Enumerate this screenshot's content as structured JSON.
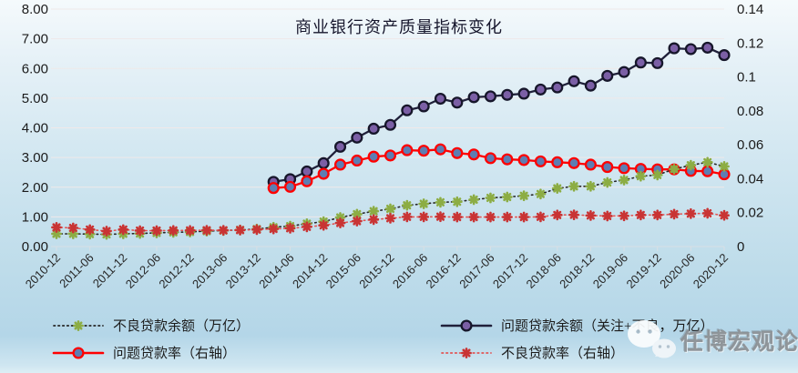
{
  "title": "商业银行资产质量指标变化",
  "watermark": {
    "text": "任博宏观论道",
    "icon": "wechat-icon"
  },
  "legend": [
    {
      "label": "不良贷款余额（万亿）"
    },
    {
      "label": "问题贷款余额（关注+不良，万亿）"
    },
    {
      "label": "问题贷款率（右轴）"
    },
    {
      "label": "不良贷款率（右轴）"
    }
  ],
  "colors": {
    "background_top": "#f5fafc",
    "background_bottom": "#b4d6e8",
    "gridline": "#efe9e9",
    "axis_line": "#d8dfe4",
    "axis_text": "#1b1b1b",
    "title_text": "#16162c",
    "npl_balance_marker": "#8CAD44",
    "npl_balance_line": "#262626",
    "problem_balance_line": "#20203A",
    "problem_balance_marker": "#7B5FA5",
    "problem_ratio_line": "#FF0000",
    "problem_ratio_marker_fill": "#5E7DB2",
    "npl_ratio_line": "#E25454",
    "npl_ratio_marker": "#C93434",
    "watermark_text": "#8a8f94"
  },
  "chart_data": {
    "type": "line",
    "title": "商业银行资产质量指标变化",
    "grid": "horizontal",
    "legend_position": "bottom",
    "categories": [
      "2010-12",
      "2011-03",
      "2011-06",
      "2011-09",
      "2011-12",
      "2012-03",
      "2012-06",
      "2012-09",
      "2012-12",
      "2013-03",
      "2013-06",
      "2013-09",
      "2013-12",
      "2014-03",
      "2014-06",
      "2014-09",
      "2014-12",
      "2015-03",
      "2015-06",
      "2015-09",
      "2015-12",
      "2016-03",
      "2016-06",
      "2016-09",
      "2016-12",
      "2017-03",
      "2017-06",
      "2017-09",
      "2017-12",
      "2018-03",
      "2018-06",
      "2018-09",
      "2018-12",
      "2019-03",
      "2019-06",
      "2019-09",
      "2019-12",
      "2020-03",
      "2020-06",
      "2020-09",
      "2020-12"
    ],
    "x_tick_labels": [
      "2010-12",
      "2011-06",
      "2011-12",
      "2012-06",
      "2012-12",
      "2013-06",
      "2013-12",
      "2014-06",
      "2014-12",
      "2015-06",
      "2015-12",
      "2016-06",
      "2016-12",
      "2017-06",
      "2017-12",
      "2018-06",
      "2018-12",
      "2019-06",
      "2019-12",
      "2020-06",
      "2020-12"
    ],
    "x_label_every": 2,
    "left_axis": {
      "min": 0,
      "max": 8,
      "step": 1,
      "tick_labels": [
        "0.00",
        "1.00",
        "2.00",
        "3.00",
        "4.00",
        "5.00",
        "6.00",
        "7.00",
        "8.00"
      ]
    },
    "right_axis": {
      "min": 0,
      "max": 0.14,
      "step": 0.02,
      "tick_labels": [
        "0",
        "0.02",
        "0.04",
        "0.06",
        "0.08",
        "0.1",
        "0.12",
        "0.14"
      ]
    },
    "series": [
      {
        "name": "不良贷款余额（万亿）",
        "axis": "left",
        "line": "dotted",
        "line_color": "#262626",
        "marker": "asterisk",
        "marker_color": "#8CAD44",
        "values": [
          0.43,
          0.43,
          0.42,
          0.41,
          0.43,
          0.44,
          0.46,
          0.48,
          0.49,
          0.52,
          0.54,
          0.56,
          0.59,
          0.65,
          0.69,
          0.77,
          0.84,
          0.98,
          1.09,
          1.19,
          1.27,
          1.39,
          1.44,
          1.49,
          1.51,
          1.58,
          1.64,
          1.67,
          1.71,
          1.77,
          1.96,
          2.03,
          2.03,
          2.16,
          2.24,
          2.37,
          2.41,
          2.61,
          2.74,
          2.84,
          2.7
        ]
      },
      {
        "name": "问题贷款余额（关注+不良，万亿）",
        "axis": "left",
        "line": "solid",
        "line_color": "#20203A",
        "marker": "circle",
        "marker_fill": "#7B5FA5",
        "marker_stroke": "#16162A",
        "values": [
          null,
          null,
          null,
          null,
          null,
          null,
          null,
          null,
          null,
          null,
          null,
          null,
          null,
          2.18,
          2.27,
          2.53,
          2.81,
          3.36,
          3.67,
          3.97,
          4.1,
          4.59,
          4.72,
          4.98,
          4.85,
          5.03,
          5.06,
          5.11,
          5.15,
          5.29,
          5.36,
          5.57,
          5.42,
          5.75,
          5.88,
          6.2,
          6.18,
          6.68,
          6.65,
          6.7,
          6.45
        ]
      },
      {
        "name": "问题贷款率（右轴）",
        "axis": "right",
        "line": "solid",
        "line_color": "#FF0000",
        "marker": "circle",
        "marker_fill": "#5E7DB2",
        "marker_stroke": "#FF0000",
        "values": [
          null,
          null,
          null,
          null,
          null,
          null,
          null,
          null,
          null,
          null,
          null,
          null,
          null,
          0.0345,
          0.0352,
          0.0385,
          0.0429,
          0.0483,
          0.0507,
          0.053,
          0.0537,
          0.0568,
          0.0565,
          0.0573,
          0.0551,
          0.0543,
          0.0521,
          0.0514,
          0.051,
          0.0502,
          0.0497,
          0.0492,
          0.0483,
          0.0469,
          0.0462,
          0.0458,
          0.0455,
          0.0455,
          0.0446,
          0.0444,
          0.0426
        ]
      },
      {
        "name": "不良贷款率（右轴）",
        "axis": "right",
        "line": "dotted",
        "line_color": "#E25454",
        "marker": "asterisk",
        "marker_color": "#C93434",
        "values": [
          0.0113,
          0.011,
          0.01,
          0.0091,
          0.01,
          0.0094,
          0.0094,
          0.0095,
          0.0095,
          0.0096,
          0.0096,
          0.0097,
          0.01,
          0.0104,
          0.0108,
          0.0116,
          0.0125,
          0.0139,
          0.015,
          0.0159,
          0.0167,
          0.0175,
          0.0175,
          0.0176,
          0.0174,
          0.0174,
          0.0174,
          0.0174,
          0.0174,
          0.0175,
          0.0186,
          0.0187,
          0.0183,
          0.018,
          0.0181,
          0.0186,
          0.0186,
          0.0191,
          0.0194,
          0.0196,
          0.0184
        ]
      }
    ]
  }
}
